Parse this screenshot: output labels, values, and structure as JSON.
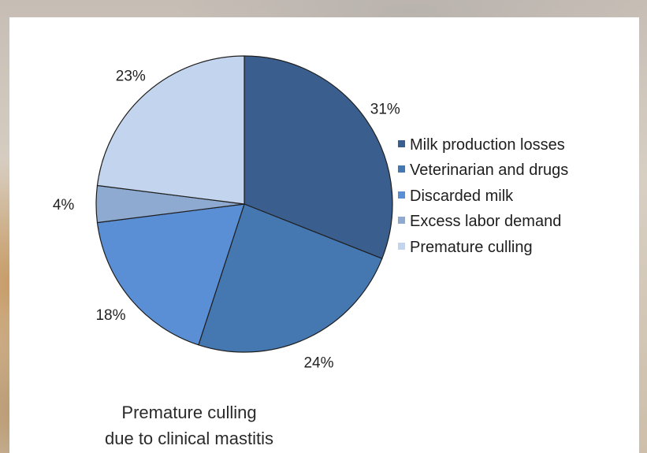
{
  "chart_data": {
    "type": "pie",
    "categories": [
      "Milk production losses",
      "Veterinarian and drugs",
      "Discarded milk",
      "Excess labor demand",
      "Premature culling"
    ],
    "values": [
      31,
      24,
      18,
      4,
      23
    ],
    "labels": [
      "31%",
      "24%",
      "18%",
      "4%",
      "23%"
    ],
    "colors": [
      "#3a5f8f",
      "#4577b1",
      "#5a8fd6",
      "#8eaad0",
      "#c3d5ee"
    ],
    "legend_position": "right",
    "caption_lines": [
      "Premature culling",
      "due to clinical mastitis"
    ]
  }
}
